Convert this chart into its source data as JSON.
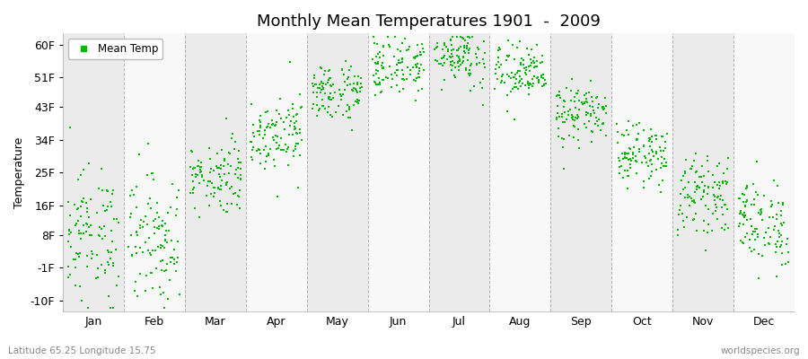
{
  "title": "Monthly Mean Temperatures 1901  -  2009",
  "ylabel": "Temperature",
  "ytick_labels": [
    "-10F",
    "-1F",
    "8F",
    "16F",
    "25F",
    "34F",
    "43F",
    "51F",
    "60F"
  ],
  "ytick_values": [
    -10,
    -1,
    8,
    16,
    25,
    34,
    43,
    51,
    60
  ],
  "ylim": [
    -13,
    63
  ],
  "months": [
    "Jan",
    "Feb",
    "Mar",
    "Apr",
    "May",
    "Jun",
    "Jul",
    "Aug",
    "Sep",
    "Oct",
    "Nov",
    "Dec"
  ],
  "xlim": [
    0,
    12
  ],
  "dot_color": "#00BB00",
  "dot_size": 3,
  "bg_color_light": "#ebebeb",
  "bg_color_white": "#f8f8f8",
  "grid_color": "#888888",
  "legend_label": "Mean Temp",
  "subtitle": "Latitude 65.25 Longitude 15.75",
  "watermark": "worldspecies.org",
  "month_mean": [
    8,
    7,
    24,
    36,
    47,
    54,
    57,
    52,
    41,
    30,
    19,
    11
  ],
  "month_spread": [
    9,
    9,
    5,
    5,
    4,
    4,
    4,
    4,
    4,
    4,
    5,
    6
  ],
  "n_points": 109
}
